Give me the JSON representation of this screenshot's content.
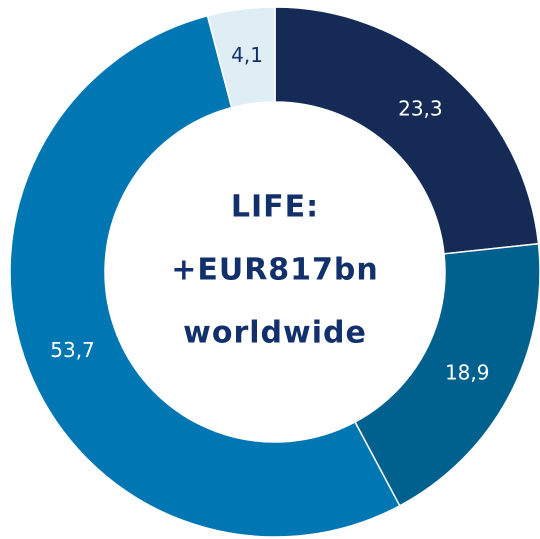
{
  "chart_data": {
    "type": "donut",
    "categories": [
      null,
      null,
      null,
      null
    ],
    "values": [
      23.3,
      18.9,
      53.7,
      4.1
    ],
    "value_labels": [
      "23,3",
      "18,9",
      "53,7",
      "4,1"
    ],
    "colors": [
      "#152b55",
      "#00618f",
      "#0077b3",
      "#deeef4"
    ],
    "center_text": [
      "LIFE:",
      "+EUR817bn",
      "worldwide"
    ]
  }
}
